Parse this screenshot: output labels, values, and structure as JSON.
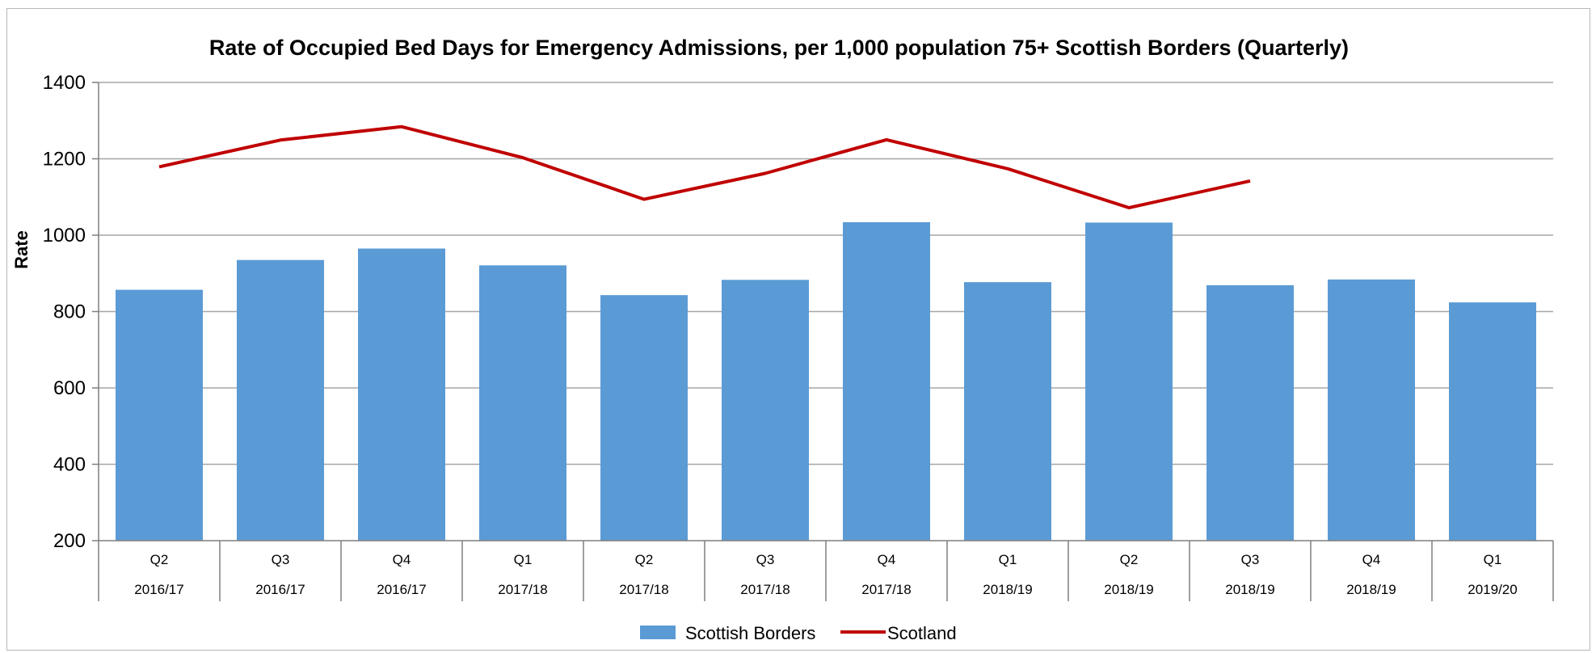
{
  "chart_data": {
    "type": "bar",
    "title": "Rate of Occupied Bed Days for Emergency Admissions, per 1,000 population 75+ Scottish Borders (Quarterly)",
    "xlabel": "",
    "ylabel": "Rate",
    "ylim": [
      200,
      1400
    ],
    "yticks": [
      "200",
      "400",
      "600",
      "800",
      "1000",
      "1200",
      "1400"
    ],
    "grid": true,
    "legend_position": "bottom",
    "categories": [
      {
        "quarter": "Q2",
        "year": "2016/17"
      },
      {
        "quarter": "Q3",
        "year": "2016/17"
      },
      {
        "quarter": "Q4",
        "year": "2016/17"
      },
      {
        "quarter": "Q1",
        "year": "2017/18"
      },
      {
        "quarter": "Q2",
        "year": "2017/18"
      },
      {
        "quarter": "Q3",
        "year": "2017/18"
      },
      {
        "quarter": "Q4",
        "year": "2017/18"
      },
      {
        "quarter": "Q1",
        "year": "2018/19"
      },
      {
        "quarter": "Q2",
        "year": "2018/19"
      },
      {
        "quarter": "Q3",
        "year": "2018/19"
      },
      {
        "quarter": "Q4",
        "year": "2018/19"
      },
      {
        "quarter": "Q1",
        "year": "2019/20"
      }
    ],
    "series": [
      {
        "name": "Scottish Borders",
        "type": "bar",
        "color": "#5b9bd5",
        "values": [
          857,
          935,
          965,
          921,
          843,
          883,
          1034,
          877,
          1033,
          869,
          884,
          824
        ]
      },
      {
        "name": "Scotland",
        "type": "line",
        "color": "#c00000",
        "values": [
          1179,
          1249,
          1284,
          1203,
          1094,
          1162,
          1250,
          1174,
          1072,
          1142,
          null,
          null
        ]
      }
    ]
  }
}
